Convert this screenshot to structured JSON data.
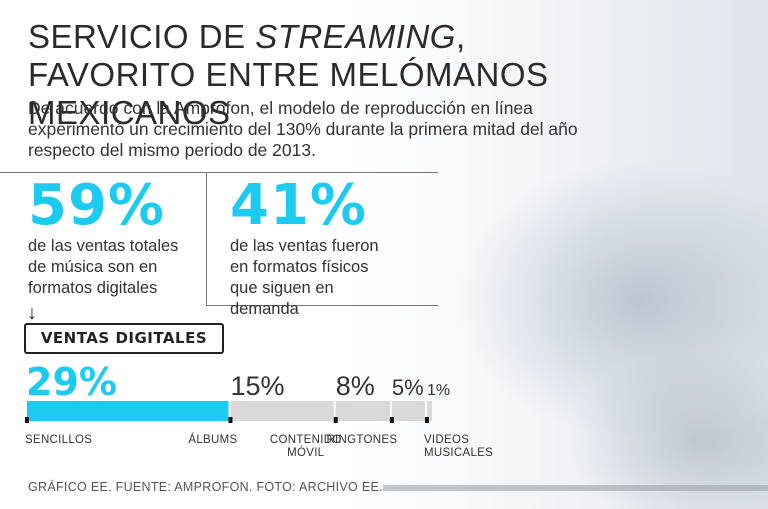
{
  "header": {
    "title_part1": "SERVICIO DE ",
    "title_italic": "STREAMING",
    "title_part2": ", FAVORITO ENTRE MELÓMANOS MEXICANOS",
    "intro": "De acuerdo con la Amprofon, el modelo de reproducción en línea experimentó un crecimiento del 130% durante la primera mitad del año respecto del mismo periodo de 2013."
  },
  "stats": {
    "digital_pct": "59%",
    "digital_desc": "de las ventas totales de música son en formatos digitales",
    "physical_pct": "41%",
    "physical_desc": "de las ventas fueron en formatos físicos que siguen en demanda"
  },
  "section_label": "VENTAS DIGITALES",
  "colors": {
    "accent": "#1ecbf0",
    "bar_gray": "#d9d9d9",
    "text": "#333333"
  },
  "chart_data": {
    "type": "bar",
    "orientation": "horizontal-stacked",
    "title": "VENTAS DIGITALES",
    "unit": "%",
    "categories": [
      "SENCILLOS",
      "ÁLBUMS",
      "CONTENIDO MÓVIL",
      "RINGTONES",
      "VIDEOS MUSICALES"
    ],
    "category_lines": [
      [
        "SENCILLOS"
      ],
      [
        "ÁLBUMS"
      ],
      [
        "CONTENIDO",
        "MÓVIL"
      ],
      [
        "RINGTONES"
      ],
      [
        "VIDEOS",
        "MUSICALES"
      ]
    ],
    "values": [
      29,
      15,
      8,
      5,
      1
    ],
    "value_labels": [
      "29%",
      "15%",
      "8%",
      "5%",
      "1%"
    ],
    "highlight_index": 0
  },
  "footer": {
    "source": "GRÁFICO EE. FUENTE: AMPROFON. FOTO: ARCHIVO EE."
  }
}
